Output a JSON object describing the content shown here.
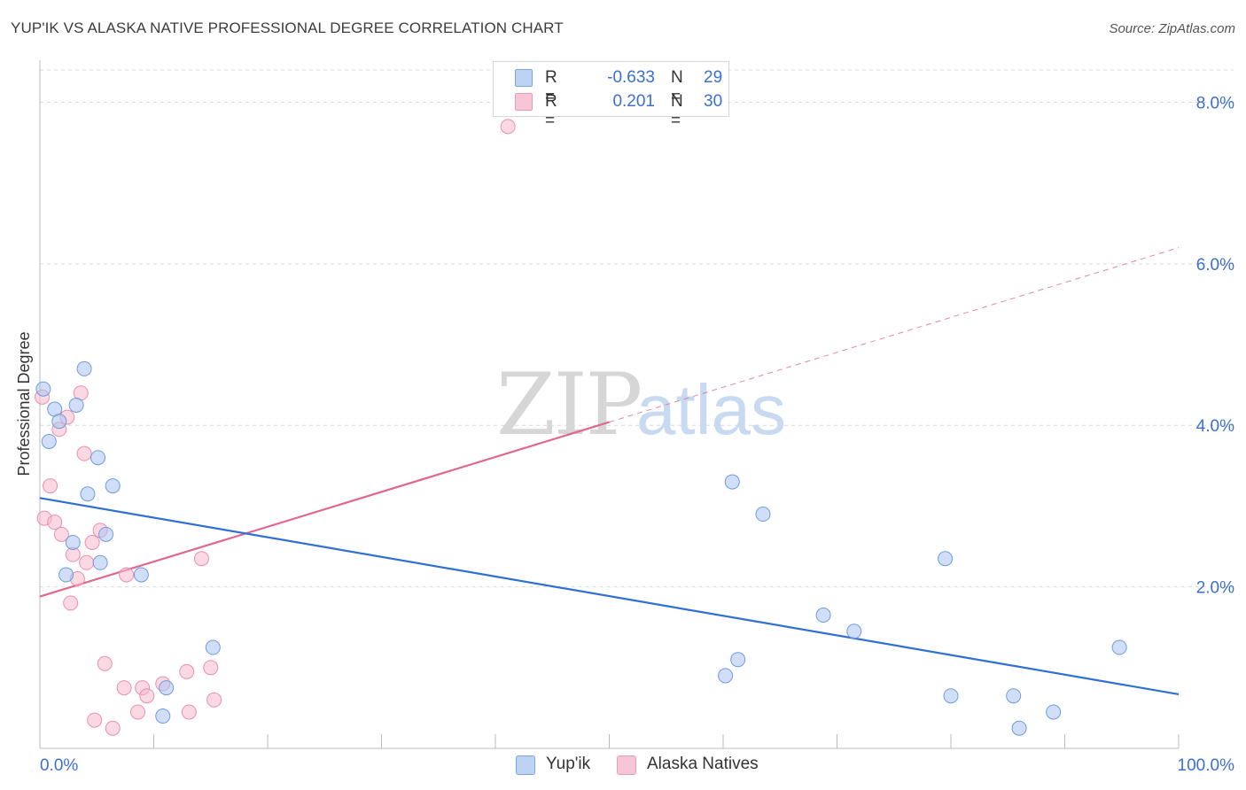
{
  "header": {
    "title": "YUP'IK VS ALASKA NATIVE PROFESSIONAL DEGREE CORRELATION CHART",
    "source": "Source: ZipAtlas.com"
  },
  "watermark": {
    "left": "ZIP",
    "right": "atlas"
  },
  "legend": {
    "r_label": "R =",
    "n_label": "N =",
    "rows": [
      {
        "series": "Yup'ik",
        "r": "-0.633",
        "n": "29",
        "swatch_fill": "#bcd3f3",
        "swatch_stroke": "#7fa4e0"
      },
      {
        "series": "Alaska Natives",
        "r": "0.201",
        "n": "30",
        "swatch_fill": "#f7c5d5",
        "swatch_stroke": "#ec9ab5"
      }
    ]
  },
  "colors": {
    "yupik_fill": "#a9c5f0",
    "yupik_stroke": "#6f9be0",
    "yupik_line": "#2f6fd6",
    "alaska_fill": "#f5b9cc",
    "alaska_stroke": "#ea8fae",
    "alaska_line": "#e06890",
    "tick_text": "#3b6fd0",
    "grid": "#d9d9d9"
  },
  "chart_data": {
    "type": "scatter",
    "title": "YUP'IK VS ALASKA NATIVE PROFESSIONAL DEGREE CORRELATION CHART",
    "xlabel": "",
    "ylabel": "Professional Degree",
    "xlim": [
      0,
      100
    ],
    "ylim": [
      0,
      8.4
    ],
    "x_tick_labels": [
      {
        "value": 0,
        "label": "0.0%"
      },
      {
        "value": 100,
        "label": "100.0%"
      }
    ],
    "y_ticks": [
      {
        "value": 2,
        "label": "2.0%"
      },
      {
        "value": 4,
        "label": "4.0%"
      },
      {
        "value": 6,
        "label": "6.0%"
      },
      {
        "value": 8,
        "label": "8.0%"
      }
    ],
    "x_minor_ticks": [
      0,
      10,
      20,
      30,
      40,
      50,
      60,
      70,
      80,
      90,
      100
    ],
    "series": [
      {
        "name": "Yup'ik",
        "r": -0.633,
        "n": 29,
        "points": [
          [
            0.3,
            4.45
          ],
          [
            0.8,
            3.8
          ],
          [
            1.3,
            4.2
          ],
          [
            1.7,
            4.05
          ],
          [
            3.2,
            4.25
          ],
          [
            3.9,
            4.7
          ],
          [
            5.1,
            3.6
          ],
          [
            4.2,
            3.15
          ],
          [
            6.4,
            3.25
          ],
          [
            5.8,
            2.65
          ],
          [
            2.9,
            2.55
          ],
          [
            5.3,
            2.3
          ],
          [
            2.3,
            2.15
          ],
          [
            8.9,
            2.15
          ],
          [
            15.2,
            1.25
          ],
          [
            10.8,
            0.4
          ],
          [
            11.1,
            0.75
          ],
          [
            60.8,
            3.3
          ],
          [
            63.5,
            2.9
          ],
          [
            79.5,
            2.35
          ],
          [
            68.8,
            1.65
          ],
          [
            71.5,
            1.45
          ],
          [
            61.3,
            1.1
          ],
          [
            60.2,
            0.9
          ],
          [
            80.0,
            0.65
          ],
          [
            85.5,
            0.65
          ],
          [
            89.0,
            0.45
          ],
          [
            86.0,
            0.25
          ],
          [
            94.8,
            1.25
          ]
        ],
        "trend": {
          "x1": 0,
          "y1": 3.1,
          "x2": 100,
          "y2": 0.67
        }
      },
      {
        "name": "Alaska Natives",
        "r": 0.201,
        "n": 30,
        "points": [
          [
            0.2,
            4.35
          ],
          [
            3.6,
            4.4
          ],
          [
            2.4,
            4.1
          ],
          [
            1.7,
            3.95
          ],
          [
            3.9,
            3.65
          ],
          [
            0.9,
            3.25
          ],
          [
            0.4,
            2.85
          ],
          [
            1.3,
            2.8
          ],
          [
            1.9,
            2.65
          ],
          [
            5.3,
            2.7
          ],
          [
            4.6,
            2.55
          ],
          [
            2.9,
            2.4
          ],
          [
            4.1,
            2.3
          ],
          [
            7.6,
            2.15
          ],
          [
            3.3,
            2.1
          ],
          [
            2.7,
            1.8
          ],
          [
            14.2,
            2.35
          ],
          [
            5.7,
            1.05
          ],
          [
            7.4,
            0.75
          ],
          [
            9.0,
            0.75
          ],
          [
            9.4,
            0.65
          ],
          [
            10.8,
            0.8
          ],
          [
            12.9,
            0.95
          ],
          [
            15.0,
            1.0
          ],
          [
            15.3,
            0.6
          ],
          [
            8.6,
            0.45
          ],
          [
            13.1,
            0.45
          ],
          [
            4.8,
            0.35
          ],
          [
            6.4,
            0.25
          ],
          [
            41.1,
            7.7
          ]
        ],
        "trend": {
          "x1": 0,
          "y1": 1.88,
          "x2": 100,
          "y2": 6.2,
          "solid_until_x": 50
        }
      }
    ]
  }
}
